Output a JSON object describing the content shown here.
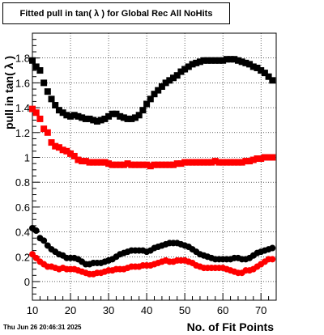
{
  "chart_data": {
    "type": "scatter",
    "title": "Fitted pull in tan( λ ) for Global Rec All NoHits",
    "xlabel": "No. of Fit Points",
    "ylabel": "pull in tan( λ )",
    "xlim": [
      10,
      74
    ],
    "ylim": [
      -0.15,
      2.0
    ],
    "x_ticks": [
      10,
      20,
      30,
      40,
      50,
      60,
      70
    ],
    "y_ticks": [
      0,
      0.2,
      0.4,
      0.6,
      0.8,
      1,
      1.2,
      1.4,
      1.6,
      1.8
    ],
    "y_tick_labels": [
      "0",
      "0.2",
      "0.4",
      "0.6",
      "0.8",
      "1",
      "1.2",
      "1.4",
      "1.6",
      "1.8"
    ],
    "grid": true,
    "x": [
      10,
      11,
      12,
      13,
      14,
      15,
      16,
      17,
      18,
      19,
      20,
      21,
      22,
      23,
      24,
      25,
      26,
      27,
      28,
      29,
      30,
      31,
      32,
      33,
      34,
      35,
      36,
      37,
      38,
      39,
      40,
      41,
      42,
      43,
      44,
      45,
      46,
      47,
      48,
      49,
      50,
      51,
      52,
      53,
      54,
      55,
      56,
      57,
      58,
      59,
      60,
      61,
      62,
      63,
      64,
      65,
      66,
      67,
      68,
      69,
      70,
      71,
      72,
      73
    ],
    "series": [
      {
        "marker": "square",
        "color": "#000000",
        "values": [
          1.78,
          1.73,
          1.7,
          1.6,
          1.53,
          1.47,
          1.42,
          1.38,
          1.36,
          1.34,
          1.33,
          1.34,
          1.33,
          1.32,
          1.31,
          1.31,
          1.3,
          1.29,
          1.3,
          1.31,
          1.33,
          1.35,
          1.35,
          1.33,
          1.32,
          1.31,
          1.31,
          1.32,
          1.34,
          1.38,
          1.43,
          1.47,
          1.51,
          1.54,
          1.57,
          1.6,
          1.62,
          1.64,
          1.66,
          1.69,
          1.71,
          1.73,
          1.75,
          1.76,
          1.77,
          1.78,
          1.78,
          1.78,
          1.78,
          1.78,
          1.78,
          1.79,
          1.79,
          1.79,
          1.78,
          1.77,
          1.76,
          1.75,
          1.73,
          1.72,
          1.7,
          1.68,
          1.65,
          1.62
        ]
      },
      {
        "marker": "square",
        "color": "#ff0000",
        "values": [
          1.39,
          1.36,
          1.31,
          1.23,
          1.2,
          1.12,
          1.09,
          1.08,
          1.06,
          1.05,
          1.03,
          1.01,
          0.98,
          0.97,
          0.97,
          0.96,
          0.96,
          0.96,
          0.96,
          0.96,
          0.95,
          0.94,
          0.94,
          0.94,
          0.94,
          0.95,
          0.94,
          0.94,
          0.94,
          0.94,
          0.94,
          0.93,
          0.94,
          0.94,
          0.94,
          0.94,
          0.94,
          0.94,
          0.95,
          0.95,
          0.96,
          0.96,
          0.96,
          0.96,
          0.96,
          0.96,
          0.96,
          0.96,
          0.97,
          0.96,
          0.96,
          0.96,
          0.96,
          0.96,
          0.96,
          0.96,
          0.97,
          0.97,
          0.98,
          0.99,
          0.99,
          1.0,
          1.0,
          1.0
        ]
      },
      {
        "marker": "circle",
        "color": "#000000",
        "values": [
          0.43,
          0.41,
          0.35,
          0.33,
          0.29,
          0.26,
          0.24,
          0.22,
          0.21,
          0.19,
          0.19,
          0.19,
          0.18,
          0.16,
          0.14,
          0.14,
          0.15,
          0.15,
          0.15,
          0.16,
          0.17,
          0.18,
          0.2,
          0.22,
          0.23,
          0.24,
          0.25,
          0.25,
          0.25,
          0.25,
          0.24,
          0.25,
          0.27,
          0.28,
          0.29,
          0.3,
          0.31,
          0.31,
          0.31,
          0.3,
          0.29,
          0.28,
          0.26,
          0.24,
          0.22,
          0.21,
          0.2,
          0.19,
          0.18,
          0.18,
          0.18,
          0.18,
          0.18,
          0.19,
          0.19,
          0.18,
          0.18,
          0.19,
          0.21,
          0.23,
          0.24,
          0.25,
          0.26,
          0.27
        ]
      },
      {
        "marker": "circle",
        "color": "#ff0000",
        "values": [
          0.22,
          0.19,
          0.16,
          0.14,
          0.12,
          0.12,
          0.11,
          0.1,
          0.11,
          0.1,
          0.1,
          0.1,
          0.09,
          0.08,
          0.07,
          0.06,
          0.06,
          0.07,
          0.07,
          0.08,
          0.09,
          0.09,
          0.1,
          0.1,
          0.1,
          0.11,
          0.12,
          0.12,
          0.12,
          0.13,
          0.13,
          0.13,
          0.14,
          0.15,
          0.16,
          0.17,
          0.16,
          0.16,
          0.17,
          0.17,
          0.17,
          0.16,
          0.15,
          0.13,
          0.12,
          0.11,
          0.11,
          0.11,
          0.11,
          0.11,
          0.11,
          0.1,
          0.09,
          0.08,
          0.07,
          0.07,
          0.09,
          0.09,
          0.1,
          0.12,
          0.14,
          0.16,
          0.18,
          0.18
        ]
      }
    ]
  },
  "footer": {
    "timestamp": "Thu Jun 26 20:46:31 2025"
  }
}
